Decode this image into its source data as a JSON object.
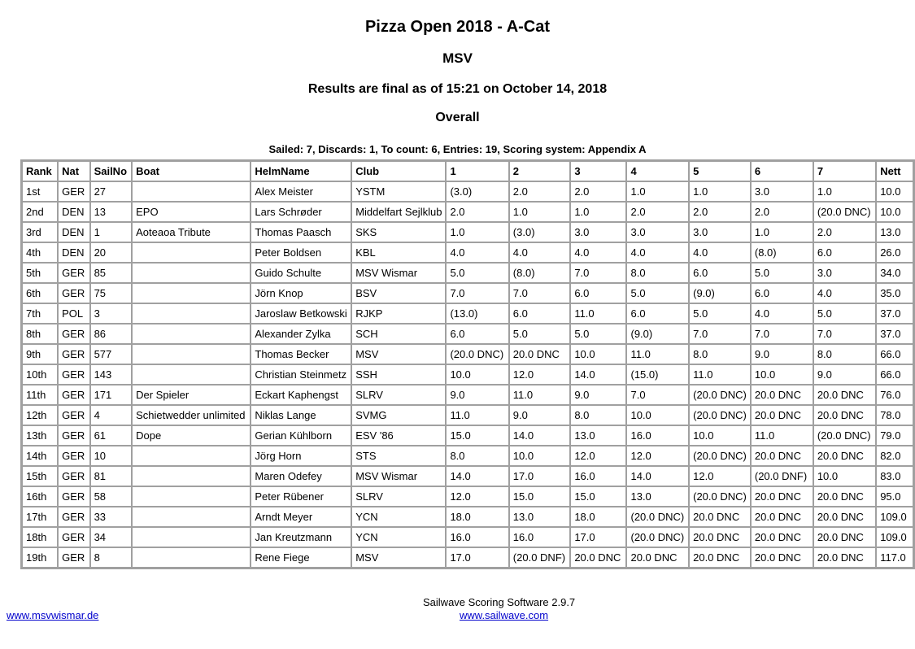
{
  "header": {
    "title": "Pizza Open 2018 - A-Cat",
    "subtitle": "MSV",
    "status": "Results are final as of 15:21 on October 14, 2018",
    "section": "Overall",
    "summary": "Sailed: 7, Discards: 1, To count: 6, Entries: 19, Scoring system: Appendix A"
  },
  "table": {
    "columns": [
      "Rank",
      "Nat",
      "SailNo",
      "Boat",
      "HelmName",
      "Club",
      "1",
      "2",
      "3",
      "4",
      "5",
      "6",
      "7",
      "Nett"
    ],
    "rows": [
      [
        "1st",
        "GER",
        "27",
        "",
        "Alex Meister",
        "YSTM",
        "(3.0)",
        "2.0",
        "2.0",
        "1.0",
        "1.0",
        "3.0",
        "1.0",
        "10.0"
      ],
      [
        "2nd",
        "DEN",
        "13",
        "EPO",
        "Lars Schrøder",
        "Middelfart Sejlklub",
        "2.0",
        "1.0",
        "1.0",
        "2.0",
        "2.0",
        "2.0",
        "(20.0 DNC)",
        "10.0"
      ],
      [
        "3rd",
        "DEN",
        "1",
        "Aoteaoa Tribute",
        "Thomas Paasch",
        "SKS",
        "1.0",
        "(3.0)",
        "3.0",
        "3.0",
        "3.0",
        "1.0",
        "2.0",
        "13.0"
      ],
      [
        "4th",
        "DEN",
        "20",
        "",
        "Peter Boldsen",
        "KBL",
        "4.0",
        "4.0",
        "4.0",
        "4.0",
        "4.0",
        "(8.0)",
        "6.0",
        "26.0"
      ],
      [
        "5th",
        "GER",
        "85",
        "",
        "Guido Schulte",
        "MSV Wismar",
        "5.0",
        "(8.0)",
        "7.0",
        "8.0",
        "6.0",
        "5.0",
        "3.0",
        "34.0"
      ],
      [
        "6th",
        "GER",
        "75",
        "",
        "Jörn Knop",
        "BSV",
        "7.0",
        "7.0",
        "6.0",
        "5.0",
        "(9.0)",
        "6.0",
        "4.0",
        "35.0"
      ],
      [
        "7th",
        "POL",
        "3",
        "",
        "Jaroslaw Betkowski",
        "RJKP",
        "(13.0)",
        "6.0",
        "11.0",
        "6.0",
        "5.0",
        "4.0",
        "5.0",
        "37.0"
      ],
      [
        "8th",
        "GER",
        "86",
        "",
        "Alexander Zylka",
        "SCH",
        "6.0",
        "5.0",
        "5.0",
        "(9.0)",
        "7.0",
        "7.0",
        "7.0",
        "37.0"
      ],
      [
        "9th",
        "GER",
        "577",
        "",
        "Thomas Becker",
        "MSV",
        "(20.0 DNC)",
        "20.0 DNC",
        "10.0",
        "11.0",
        "8.0",
        "9.0",
        "8.0",
        "66.0"
      ],
      [
        "10th",
        "GER",
        "143",
        "",
        "Christian Steinmetz",
        "SSH",
        "10.0",
        "12.0",
        "14.0",
        "(15.0)",
        "11.0",
        "10.0",
        "9.0",
        "66.0"
      ],
      [
        "11th",
        "GER",
        "171",
        "Der Spieler",
        "Eckart Kaphengst",
        "SLRV",
        "9.0",
        "11.0",
        "9.0",
        "7.0",
        "(20.0 DNC)",
        "20.0 DNC",
        "20.0 DNC",
        "76.0"
      ],
      [
        "12th",
        "GER",
        "4",
        "Schietwedder unlimited",
        "Niklas Lange",
        "SVMG",
        "11.0",
        "9.0",
        "8.0",
        "10.0",
        "(20.0 DNC)",
        "20.0 DNC",
        "20.0 DNC",
        "78.0"
      ],
      [
        "13th",
        "GER",
        "61",
        "Dope",
        "Gerian Kühlborn",
        "ESV '86",
        "15.0",
        "14.0",
        "13.0",
        "16.0",
        "10.0",
        "11.0",
        "(20.0 DNC)",
        "79.0"
      ],
      [
        "14th",
        "GER",
        "10",
        "",
        "Jörg Horn",
        "STS",
        "8.0",
        "10.0",
        "12.0",
        "12.0",
        "(20.0 DNC)",
        "20.0 DNC",
        "20.0 DNC",
        "82.0"
      ],
      [
        "15th",
        "GER",
        "81",
        "",
        "Maren Odefey",
        "MSV Wismar",
        "14.0",
        "17.0",
        "16.0",
        "14.0",
        "12.0",
        "(20.0 DNF)",
        "10.0",
        "83.0"
      ],
      [
        "16th",
        "GER",
        "58",
        "",
        "Peter Rübener",
        "SLRV",
        "12.0",
        "15.0",
        "15.0",
        "13.0",
        "(20.0 DNC)",
        "20.0 DNC",
        "20.0 DNC",
        "95.0"
      ],
      [
        "17th",
        "GER",
        "33",
        "",
        "Arndt Meyer",
        "YCN",
        "18.0",
        "13.0",
        "18.0",
        "(20.0 DNC)",
        "20.0 DNC",
        "20.0 DNC",
        "20.0 DNC",
        "109.0"
      ],
      [
        "18th",
        "GER",
        "34",
        "",
        "Jan Kreutzmann",
        "YCN",
        "16.0",
        "16.0",
        "17.0",
        "(20.0 DNC)",
        "20.0 DNC",
        "20.0 DNC",
        "20.0 DNC",
        "109.0"
      ],
      [
        "19th",
        "GER",
        "8",
        "",
        "Rene Fiege",
        "MSV",
        "17.0",
        "(20.0 DNF)",
        "20.0 DNC",
        "20.0 DNC",
        "20.0 DNC",
        "20.0 DNC",
        "20.0 DNC",
        "117.0"
      ]
    ]
  },
  "footer": {
    "software": "Sailwave Scoring Software 2.9.7",
    "club_link": "www.msvwismar.de",
    "sailwave_link": "www.sailwave.com",
    "link_color": "#0000cc"
  }
}
